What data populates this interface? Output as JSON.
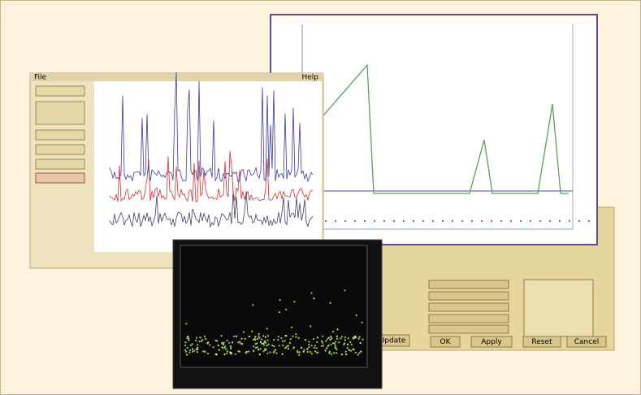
{
  "menu": {
    "items": [
      "File",
      "Help"
    ]
  },
  "dialog": {
    "buttons": [
      "Update",
      "OK",
      "Apply",
      "Reset",
      "Cancel"
    ]
  }
}
